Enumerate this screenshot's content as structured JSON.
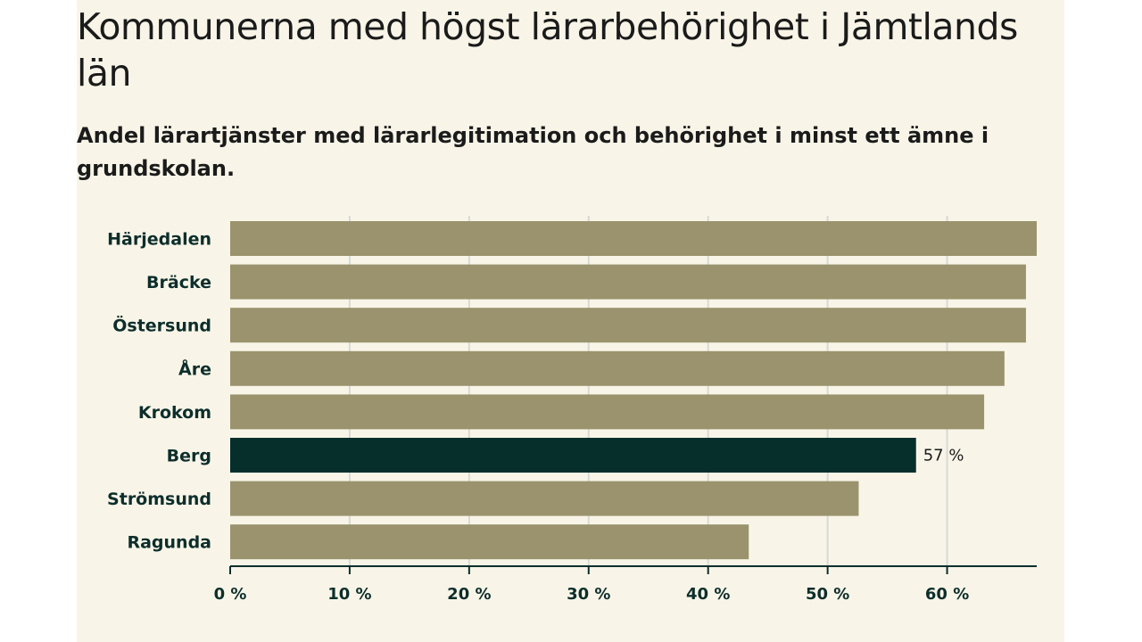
{
  "header": {
    "title": "Kommunerna med högst lärarbehörighet i Jämtlands län",
    "subtitle": "Andel lärartjänster med lärarlegitimation och behörighet i minst ett ämne i grundskolan."
  },
  "colors": {
    "background": "#f8f5e8",
    "bar": "#9a936d",
    "highlight": "#062e2b",
    "grid": "#d9d9d4",
    "axis": "#0d2e2b"
  },
  "chart_data": {
    "type": "bar",
    "orientation": "horizontal",
    "title": "Kommunerna med högst lärarbehörighet i Jämtlands län",
    "subtitle": "Andel lärartjänster med lärarlegitimation och behörighet i minst ett ämne i grundskolan.",
    "categories": [
      "Härjedalen",
      "Bräcke",
      "Östersund",
      "Åre",
      "Krokom",
      "Berg",
      "Strömsund",
      "Ragunda"
    ],
    "values": [
      67.5,
      66.6,
      66.6,
      64.8,
      63.1,
      57.4,
      52.6,
      43.4
    ],
    "highlight": "Berg",
    "data_labels": [
      {
        "category": "Berg",
        "text": "57 %"
      }
    ],
    "xlabel": "",
    "ylabel": "",
    "xlim": [
      0,
      67.5
    ],
    "xticks": [
      0,
      10,
      20,
      30,
      40,
      50,
      60
    ],
    "xtick_labels": [
      "0 %",
      "10 %",
      "20 %",
      "30 %",
      "40 %",
      "50 %",
      "60 %"
    ],
    "grid": true
  }
}
